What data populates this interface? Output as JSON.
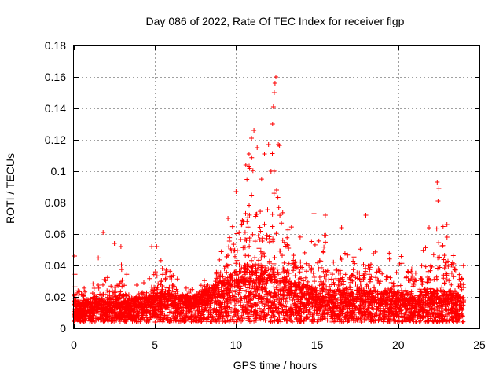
{
  "chart_data": {
    "type": "scatter",
    "title": "Day 086 of 2022, Rate Of TEC Index for receiver flgp",
    "xlabel": "GPS time / hours",
    "ylabel": "ROTI / TECUs",
    "xlim": [
      0,
      25
    ],
    "ylim": [
      0,
      0.18
    ],
    "x_ticks": [
      "0",
      "5",
      "10",
      "15",
      "20",
      "25"
    ],
    "y_ticks": [
      "0",
      "0.02",
      "0.04",
      "0.06",
      "0.08",
      "0.1",
      "0.12",
      "0.14",
      "0.16",
      "0.18"
    ],
    "grid": true,
    "marker": "plus",
    "series_color": "#ff0000",
    "profile": [
      [
        0.0,
        0.012,
        0.04
      ],
      [
        0.5,
        0.01,
        0.03
      ],
      [
        1.0,
        0.01,
        0.028
      ],
      [
        1.5,
        0.012,
        0.045
      ],
      [
        2.0,
        0.011,
        0.032
      ],
      [
        2.5,
        0.012,
        0.04
      ],
      [
        3.0,
        0.012,
        0.045
      ],
      [
        3.5,
        0.011,
        0.025
      ],
      [
        4.0,
        0.012,
        0.03
      ],
      [
        4.5,
        0.013,
        0.035
      ],
      [
        5.0,
        0.015,
        0.05
      ],
      [
        5.5,
        0.015,
        0.045
      ],
      [
        6.0,
        0.014,
        0.038
      ],
      [
        6.5,
        0.013,
        0.03
      ],
      [
        7.0,
        0.013,
        0.025
      ],
      [
        7.5,
        0.013,
        0.028
      ],
      [
        8.0,
        0.015,
        0.032
      ],
      [
        8.5,
        0.018,
        0.04
      ],
      [
        9.0,
        0.02,
        0.05
      ],
      [
        9.5,
        0.022,
        0.065
      ],
      [
        10.0,
        0.025,
        0.085
      ],
      [
        10.5,
        0.028,
        0.105
      ],
      [
        11.0,
        0.03,
        0.12
      ],
      [
        11.5,
        0.028,
        0.095
      ],
      [
        12.0,
        0.027,
        0.11
      ],
      [
        12.5,
        0.025,
        0.155
      ],
      [
        13.0,
        0.022,
        0.08
      ],
      [
        13.5,
        0.02,
        0.065
      ],
      [
        14.0,
        0.018,
        0.06
      ],
      [
        14.5,
        0.018,
        0.055
      ],
      [
        15.0,
        0.017,
        0.065
      ],
      [
        15.5,
        0.016,
        0.06
      ],
      [
        16.0,
        0.016,
        0.05
      ],
      [
        16.5,
        0.016,
        0.055
      ],
      [
        17.0,
        0.015,
        0.045
      ],
      [
        17.5,
        0.016,
        0.05
      ],
      [
        18.0,
        0.016,
        0.06
      ],
      [
        18.5,
        0.016,
        0.055
      ],
      [
        19.0,
        0.015,
        0.05
      ],
      [
        19.5,
        0.015,
        0.048
      ],
      [
        20.0,
        0.015,
        0.05
      ],
      [
        20.5,
        0.014,
        0.045
      ],
      [
        21.0,
        0.014,
        0.05
      ],
      [
        21.5,
        0.015,
        0.055
      ],
      [
        22.0,
        0.015,
        0.06
      ],
      [
        22.5,
        0.016,
        0.09
      ],
      [
        23.0,
        0.016,
        0.065
      ],
      [
        23.5,
        0.015,
        0.055
      ],
      [
        24.0,
        0.012,
        0.045
      ]
    ],
    "highlights": [
      [
        0.05,
        0.046
      ],
      [
        1.8,
        0.061
      ],
      [
        2.5,
        0.054
      ],
      [
        2.9,
        0.052
      ],
      [
        4.8,
        0.052
      ],
      [
        5.1,
        0.052
      ],
      [
        9.5,
        0.07
      ],
      [
        10.0,
        0.087
      ],
      [
        10.6,
        0.104
      ],
      [
        10.8,
        0.111
      ],
      [
        10.95,
        0.121
      ],
      [
        11.1,
        0.126
      ],
      [
        11.3,
        0.115
      ],
      [
        11.75,
        0.111
      ],
      [
        12.0,
        0.117
      ],
      [
        12.15,
        0.1
      ],
      [
        12.25,
        0.13
      ],
      [
        12.3,
        0.141
      ],
      [
        12.35,
        0.15
      ],
      [
        12.4,
        0.156
      ],
      [
        12.45,
        0.16
      ],
      [
        12.6,
        0.117
      ],
      [
        12.5,
        0.088
      ],
      [
        14.8,
        0.073
      ],
      [
        15.5,
        0.072
      ],
      [
        16.5,
        0.064
      ],
      [
        18.0,
        0.072
      ],
      [
        22.4,
        0.093
      ],
      [
        22.5,
        0.089
      ],
      [
        22.45,
        0.081
      ],
      [
        23.0,
        0.066
      ],
      [
        21.9,
        0.064
      ]
    ],
    "point_count": 4500
  }
}
